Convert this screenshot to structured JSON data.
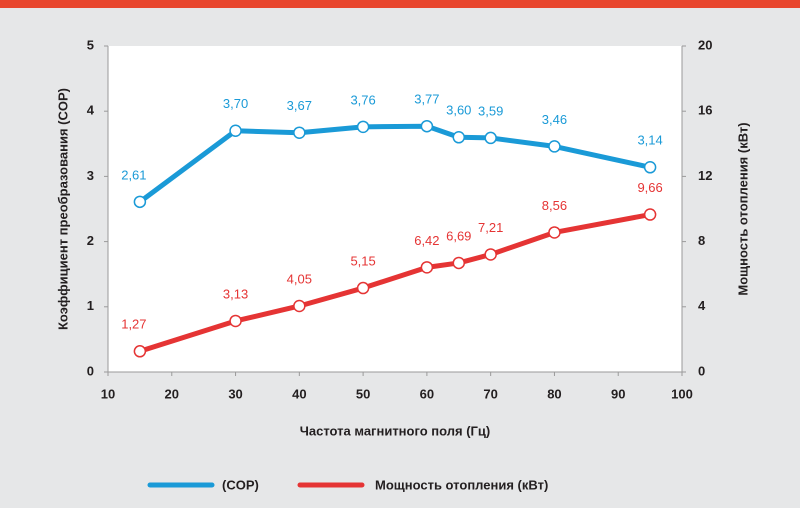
{
  "chart_data": {
    "type": "line",
    "x_label": "Частота магнитного поля (Гц)",
    "y_label": "Коэффициент преобразования (COP)",
    "y2_label": "Мощность отопления (кВт)",
    "x": [
      15,
      30,
      40,
      50,
      60,
      65,
      70,
      80,
      95
    ],
    "xlim": [
      10,
      100
    ],
    "xticks": [
      10,
      20,
      30,
      40,
      50,
      60,
      70,
      80,
      90,
      100
    ],
    "ylim": [
      0,
      5
    ],
    "yticks": [
      0,
      1,
      2,
      3,
      4,
      5
    ],
    "y2lim": [
      0,
      20
    ],
    "y2ticks": [
      0,
      4,
      8,
      12,
      16,
      20
    ],
    "grid": false,
    "legend": "bottom",
    "series": [
      {
        "name": "(COP)",
        "color": "#1a9ad7",
        "axis": "y",
        "values": [
          2.61,
          3.7,
          3.67,
          3.76,
          3.77,
          3.6,
          3.59,
          3.46,
          3.14
        ],
        "value_labels": [
          "2,61",
          "3,70",
          "3,67",
          "3,76",
          "3,77",
          "3,60",
          "3,59",
          "3,46",
          "3,14"
        ]
      },
      {
        "name": "Мощность отопления (кВт)",
        "color": "#e53434",
        "axis": "y2",
        "values": [
          1.27,
          3.13,
          4.05,
          5.15,
          6.42,
          6.69,
          7.21,
          8.56,
          9.66
        ],
        "value_labels": [
          "1,27",
          "3,13",
          "4,05",
          "5,15",
          "6,42",
          "6,69",
          "7,21",
          "8,56",
          "9,66"
        ]
      }
    ]
  }
}
